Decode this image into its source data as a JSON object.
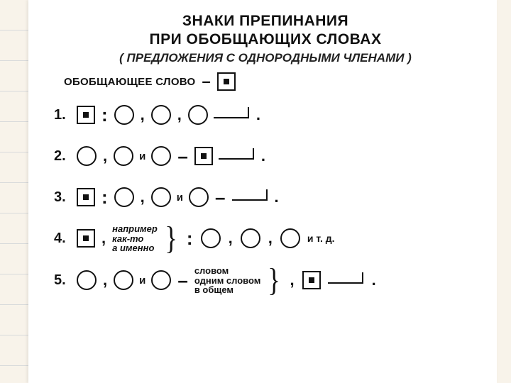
{
  "colors": {
    "ink": "#111111",
    "paper": "#ffffff",
    "page_bg": "#f8f3ea",
    "rule_line": "#b7c0cc"
  },
  "typography": {
    "title_fontsize_pt": 16,
    "subtitle_fontsize_pt": 13,
    "body_fontsize_pt": 15,
    "title_weight": 900,
    "body_weight": 700
  },
  "title": {
    "line1": "ЗНАКИ ПРЕПИНАНИЯ",
    "line2": "ПРИ ОБОБЩАЮЩИХ СЛОВАХ",
    "subtitle": "( ПРЕДЛОЖЕНИЯ С ОДНОРОДНЫМИ ЧЛЕНАМИ )"
  },
  "legend": {
    "label": "ОБОБЩАЮЩЕЕ СЛОВО",
    "dash": "–"
  },
  "symbols": {
    "square_dot": "generalizing-word-symbol",
    "circle": "homogeneous-member-symbol",
    "tail": "sentence-continuation-symbol"
  },
  "conj": {
    "and": "и",
    "etc": "и т. д."
  },
  "row4_words": {
    "namely": "например",
    "such_as": "как-то",
    "that_is": "а именно"
  },
  "row5_words": {
    "in_a_word": "словом",
    "one_word": "одним словом",
    "in_general": "в общем"
  },
  "punct": {
    "colon": ":",
    "comma": ",",
    "dash": "–",
    "period": "."
  },
  "rows": {
    "n1": "1.",
    "n2": "2.",
    "n3": "3.",
    "n4": "4.",
    "n5": "5."
  }
}
